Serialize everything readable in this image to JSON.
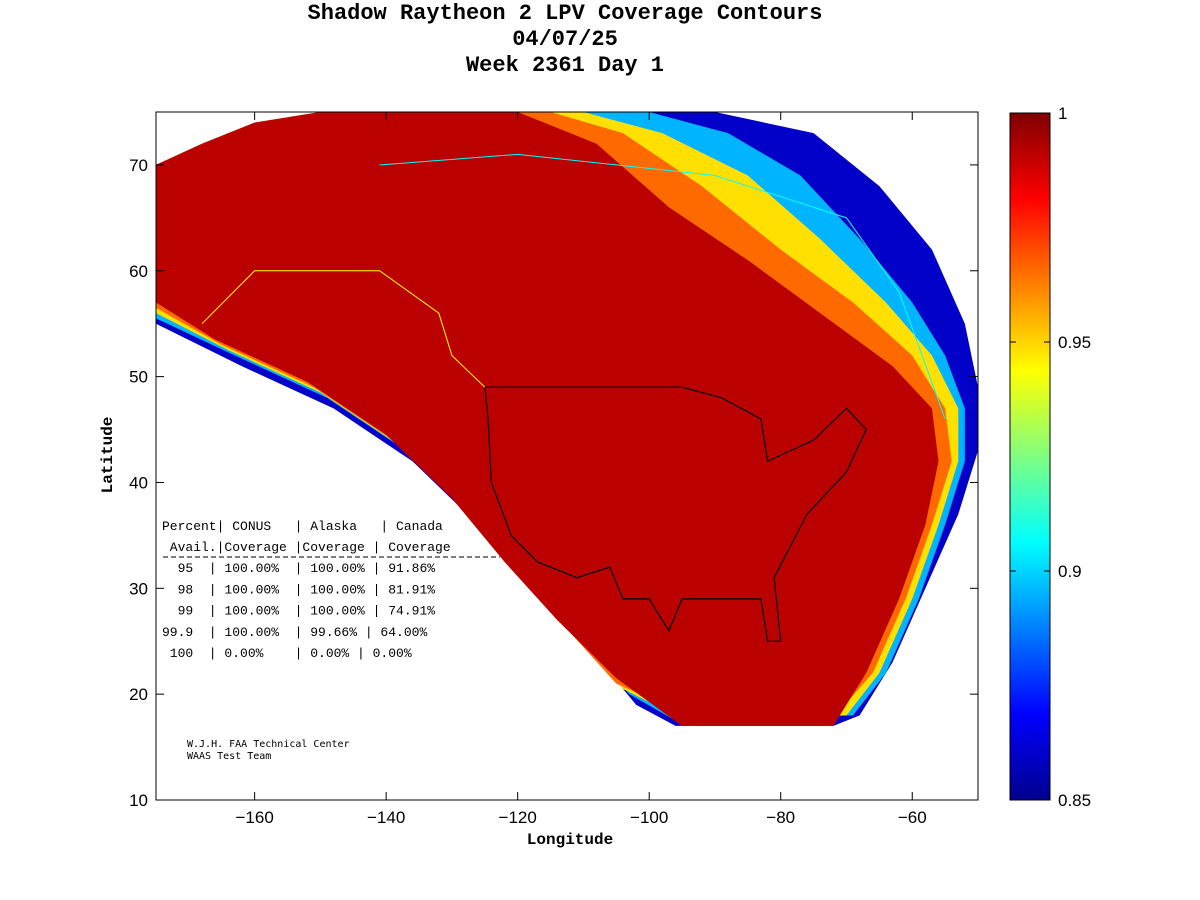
{
  "chart_data": {
    "type": "heatmap",
    "title": [
      "Shadow Raytheon 2 LPV Coverage Contours",
      "04/07/25",
      "Week 2361 Day 1"
    ],
    "xlabel": "Longitude",
    "ylabel": "Latitude",
    "xlim": [
      -175,
      -50
    ],
    "ylim": [
      10,
      75
    ],
    "xticks": [
      -160,
      -140,
      -120,
      -100,
      -80,
      -60
    ],
    "yticks": [
      10,
      20,
      30,
      40,
      50,
      60,
      70
    ],
    "colorbar": {
      "range": [
        0.85,
        1
      ],
      "ticks": [
        "1",
        "0.95",
        "0.9",
        "0.85"
      ],
      "tick_values": [
        1,
        0.95,
        0.9,
        0.85
      ],
      "colormap": "jet"
    },
    "coverage_table": {
      "header1": [
        "Percent",
        "CONUS",
        "Alaska",
        "Canada"
      ],
      "header2": [
        "Avail.",
        "Coverage",
        "Coverage",
        "Coverage"
      ],
      "rows": [
        [
          "95",
          "100.00%",
          "100.00%",
          "91.86%"
        ],
        [
          "98",
          "100.00%",
          "100.00%",
          "81.91%"
        ],
        [
          "99",
          "100.00%",
          "100.00%",
          "74.91%"
        ],
        [
          "99.9",
          "100.00%",
          "99.66%",
          "64.00%"
        ],
        [
          "100",
          "0.00%",
          "0.00%",
          "0.00%"
        ]
      ]
    },
    "credit": [
      "W.J.H. FAA Technical Center",
      "WAAS Test Team"
    ]
  }
}
